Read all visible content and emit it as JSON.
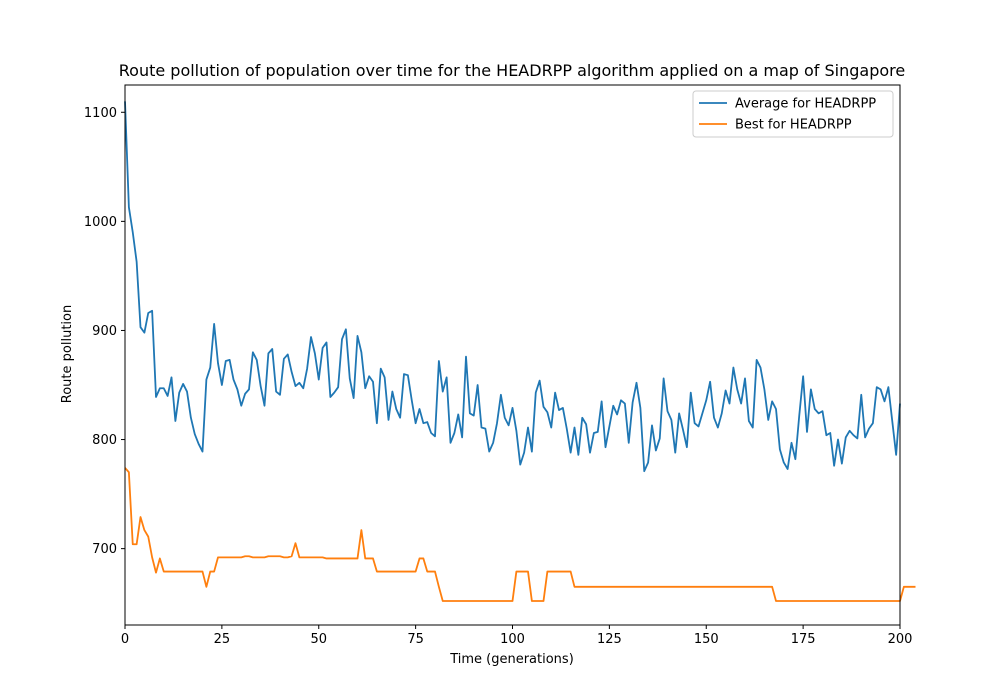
{
  "chart_data": {
    "type": "line",
    "title": "Route pollution of population over time for the HEADRPP algorithm applied on a map of Singapore",
    "xlabel": "Time (generations)",
    "ylabel": "Route pollution",
    "xlim": [
      0,
      200
    ],
    "ylim": [
      630,
      1125
    ],
    "xticks": [
      0,
      25,
      50,
      75,
      100,
      125,
      150,
      175,
      200
    ],
    "yticks": [
      700,
      800,
      900,
      1000,
      1100
    ],
    "grid": false,
    "legend_position": "upper right",
    "series": [
      {
        "name": "Average for HEADRPP",
        "color": "#1f77b4",
        "x_start": 0,
        "x_step": 1,
        "values": [
          1110,
          1013,
          990,
          963,
          903,
          898,
          916,
          918,
          839,
          847,
          847,
          840,
          857,
          817,
          843,
          851,
          844,
          820,
          805,
          796,
          789,
          855,
          866,
          906,
          870,
          850,
          872,
          873,
          855,
          846,
          831,
          842,
          846,
          880,
          873,
          849,
          831,
          879,
          883,
          844,
          841,
          874,
          878,
          862,
          849,
          852,
          847,
          865,
          894,
          879,
          855,
          884,
          889,
          839,
          843,
          848,
          892,
          901,
          856,
          838,
          895,
          880,
          847,
          858,
          853,
          815,
          865,
          857,
          818,
          844,
          828,
          820,
          860,
          859,
          836,
          815,
          828,
          815,
          816,
          806,
          803,
          872,
          844,
          857,
          797,
          806,
          823,
          802,
          876,
          824,
          822,
          850,
          811,
          810,
          789,
          797,
          815,
          841,
          820,
          813,
          829,
          808,
          777,
          788,
          811,
          789,
          843,
          854,
          830,
          825,
          811,
          843,
          827,
          829,
          810,
          788,
          811,
          786,
          820,
          814,
          788,
          806,
          807,
          835,
          793,
          812,
          831,
          823,
          836,
          833,
          797,
          834,
          852,
          829,
          771,
          779,
          813,
          790,
          801,
          856,
          826,
          818,
          788,
          824,
          809,
          793,
          843,
          815,
          812,
          824,
          836,
          853,
          820,
          811,
          824,
          845,
          833,
          866,
          846,
          833,
          856,
          817,
          811,
          873,
          866,
          846,
          818,
          835,
          828,
          791,
          779,
          773,
          797,
          782,
          822,
          858,
          807,
          846,
          828,
          824,
          826,
          804,
          806,
          776,
          800,
          778,
          802,
          808,
          804,
          801,
          841,
          802,
          810,
          815,
          848,
          846,
          835,
          848,
          817,
          786,
          833
        ]
      },
      {
        "name": "Best for HEADRPP",
        "color": "#ff7f0e",
        "x_start": 0,
        "x_step": 1,
        "values": [
          774,
          770,
          704,
          704,
          729,
          717,
          711,
          692,
          678,
          691,
          679,
          679,
          679,
          679,
          679,
          679,
          679,
          679,
          679,
          679,
          679,
          665,
          679,
          679,
          692,
          692,
          692,
          692,
          692,
          692,
          692,
          693,
          693,
          692,
          692,
          692,
          692,
          693,
          693,
          693,
          693,
          692,
          692,
          693,
          705,
          692,
          692,
          692,
          692,
          692,
          692,
          692,
          691,
          691,
          691,
          691,
          691,
          691,
          691,
          691,
          691,
          717,
          691,
          691,
          691,
          679,
          679,
          679,
          679,
          679,
          679,
          679,
          679,
          679,
          679,
          679,
          691,
          691,
          679,
          679,
          679,
          665,
          652,
          652,
          652,
          652,
          652,
          652,
          652,
          652,
          652,
          652,
          652,
          652,
          652,
          652,
          652,
          652,
          652,
          652,
          652,
          679,
          679,
          679,
          679,
          652,
          652,
          652,
          652,
          679,
          679,
          679,
          679,
          679,
          679,
          679,
          665,
          665,
          665,
          665,
          665,
          665,
          665,
          665,
          665,
          665,
          665,
          665,
          665,
          665,
          665,
          665,
          665,
          665,
          665,
          665,
          665,
          665,
          665,
          665,
          665,
          665,
          665,
          665,
          665,
          665,
          665,
          665,
          665,
          665,
          665,
          665,
          665,
          665,
          665,
          665,
          665,
          665,
          665,
          665,
          665,
          665,
          665,
          665,
          665,
          665,
          665,
          665,
          652,
          652,
          652,
          652,
          652,
          652,
          652,
          652,
          652,
          652,
          652,
          652,
          652,
          652,
          652,
          652,
          652,
          652,
          652,
          652,
          652,
          652,
          652,
          652,
          652,
          652,
          652,
          652,
          652,
          652,
          652,
          652,
          652,
          665,
          665,
          665,
          665
        ]
      }
    ]
  }
}
